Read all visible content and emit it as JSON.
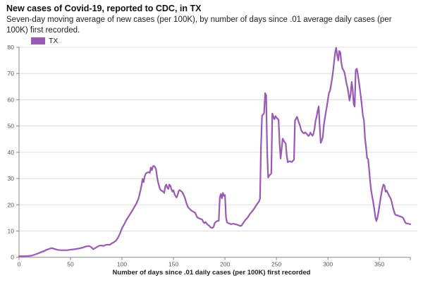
{
  "header": {
    "title": "New cases of Covid-19, reported to CDC, in TX",
    "subtitle": "Seven-day moving average of new cases (per 100K), by number of days since .01 average daily cases (per 100K) first recorded."
  },
  "colors": {
    "line": "#9b59b6",
    "grid": "#dddddd",
    "axis": "#888888",
    "tick_label": "#555555"
  },
  "chart_data": {
    "type": "line",
    "title": "New cases of Covid-19, reported to CDC, in TX",
    "xlabel": "Number of days since .01 daily cases (per 100K) first recorded",
    "ylabel": "",
    "xlim": [
      0,
      380
    ],
    "ylim": [
      0,
      80
    ],
    "x_ticks": [
      0,
      50,
      100,
      150,
      200,
      250,
      300,
      350
    ],
    "y_ticks": [
      0,
      10,
      20,
      30,
      40,
      50,
      60,
      70,
      80
    ],
    "grid": true,
    "legend_position": "top-left",
    "series": [
      {
        "name": "TX",
        "color": "#9b59b6",
        "points": [
          [
            0,
            0.4
          ],
          [
            4,
            0.4
          ],
          [
            8,
            0.45
          ],
          [
            12,
            0.6
          ],
          [
            15,
            1.0
          ],
          [
            18,
            1.4
          ],
          [
            21,
            1.9
          ],
          [
            24,
            2.3
          ],
          [
            27,
            2.9
          ],
          [
            30,
            3.3
          ],
          [
            32,
            3.5
          ],
          [
            34,
            3.2
          ],
          [
            36,
            3.0
          ],
          [
            38,
            2.8
          ],
          [
            41,
            2.7
          ],
          [
            44,
            2.7
          ],
          [
            47,
            2.7
          ],
          [
            50,
            2.9
          ],
          [
            53,
            3.0
          ],
          [
            56,
            3.2
          ],
          [
            59,
            3.4
          ],
          [
            62,
            3.7
          ],
          [
            64,
            4.0
          ],
          [
            66,
            4.2
          ],
          [
            68,
            4.3
          ],
          [
            70,
            3.9
          ],
          [
            72,
            3.1
          ],
          [
            74,
            3.5
          ],
          [
            76,
            4.0
          ],
          [
            78,
            4.4
          ],
          [
            80,
            4.5
          ],
          [
            82,
            4.3
          ],
          [
            84,
            4.7
          ],
          [
            86,
            4.8
          ],
          [
            88,
            4.7
          ],
          [
            90,
            5.3
          ],
          [
            92,
            5.7
          ],
          [
            94,
            6.3
          ],
          [
            96,
            7.4
          ],
          [
            98,
            9.0
          ],
          [
            100,
            11.1
          ],
          [
            102,
            12.5
          ],
          [
            104,
            14.0
          ],
          [
            106,
            15.3
          ],
          [
            108,
            16.5
          ],
          [
            110,
            17.8
          ],
          [
            112,
            19.2
          ],
          [
            114,
            20.5
          ],
          [
            116,
            22.3
          ],
          [
            118,
            25.5
          ],
          [
            119,
            27.5
          ],
          [
            120,
            29.9
          ],
          [
            121,
            28.6
          ],
          [
            122,
            30.8
          ],
          [
            123,
            31.8
          ],
          [
            124,
            32.2
          ],
          [
            126,
            32.4
          ],
          [
            127,
            32.2
          ],
          [
            128,
            34.2
          ],
          [
            129,
            33.2
          ],
          [
            130,
            34.6
          ],
          [
            131,
            34.8
          ],
          [
            132,
            34.4
          ],
          [
            133,
            33.5
          ],
          [
            134,
            30.8
          ],
          [
            135,
            28.6
          ],
          [
            136,
            27.2
          ],
          [
            137,
            25.9
          ],
          [
            138,
            25.5
          ],
          [
            139,
            25.2
          ],
          [
            140,
            25.0
          ],
          [
            141,
            24.5
          ],
          [
            142,
            27.0
          ],
          [
            143,
            27.7
          ],
          [
            144,
            26.5
          ],
          [
            145,
            26.0
          ],
          [
            146,
            27.7
          ],
          [
            147,
            27.2
          ],
          [
            148,
            25.9
          ],
          [
            149,
            25.0
          ],
          [
            150,
            25.5
          ],
          [
            151,
            24.1
          ],
          [
            152,
            23.3
          ],
          [
            153,
            22.8
          ],
          [
            154,
            23.7
          ],
          [
            155,
            25.2
          ],
          [
            156,
            25.6
          ],
          [
            157,
            25.3
          ],
          [
            158,
            25.0
          ],
          [
            159,
            24.5
          ],
          [
            160,
            23.6
          ],
          [
            161,
            22.8
          ],
          [
            162,
            21.4
          ],
          [
            163,
            20.1
          ],
          [
            164,
            19.2
          ],
          [
            166,
            18.3
          ],
          [
            168,
            17.6
          ],
          [
            170,
            17.2
          ],
          [
            171,
            17.0
          ],
          [
            172,
            16.1
          ],
          [
            173,
            15.2
          ],
          [
            175,
            14.8
          ],
          [
            177,
            14.5
          ],
          [
            178,
            14.3
          ],
          [
            179,
            13.4
          ],
          [
            180,
            13.0
          ],
          [
            181,
            13.4
          ],
          [
            182,
            13.0
          ],
          [
            183,
            12.5
          ],
          [
            185,
            11.9
          ],
          [
            186,
            11.4
          ],
          [
            187,
            11.2
          ],
          [
            188,
            11.2
          ],
          [
            189,
            11.6
          ],
          [
            190,
            13.0
          ],
          [
            191,
            13.4
          ],
          [
            192,
            13.7
          ],
          [
            193,
            13.9
          ],
          [
            194,
            13.9
          ],
          [
            195,
            22.8
          ],
          [
            196,
            24.1
          ],
          [
            197,
            22.4
          ],
          [
            198,
            24.5
          ],
          [
            199,
            23.4
          ],
          [
            200,
            23.7
          ],
          [
            201,
            15.1
          ],
          [
            202,
            13.3
          ],
          [
            204,
            12.9
          ],
          [
            206,
            12.6
          ],
          [
            208,
            12.8
          ],
          [
            210,
            12.6
          ],
          [
            212,
            12.4
          ],
          [
            214,
            12.1
          ],
          [
            215,
            11.9
          ],
          [
            216,
            12.1
          ],
          [
            218,
            13.2
          ],
          [
            220,
            14.3
          ],
          [
            222,
            15.1
          ],
          [
            224,
            16.4
          ],
          [
            226,
            17.3
          ],
          [
            228,
            18.3
          ],
          [
            230,
            19.6
          ],
          [
            232,
            20.7
          ],
          [
            233,
            21.2
          ],
          [
            234,
            22.3
          ],
          [
            235,
            42.0
          ],
          [
            236,
            54.0
          ],
          [
            237,
            54.3
          ],
          [
            238,
            55.0
          ],
          [
            239,
            62.5
          ],
          [
            240,
            61.8
          ],
          [
            241,
            40.0
          ],
          [
            242,
            30.4
          ],
          [
            243,
            31.2
          ],
          [
            244,
            31.5
          ],
          [
            245,
            31.9
          ],
          [
            246,
            54.8
          ],
          [
            247,
            53.5
          ],
          [
            248,
            52.6
          ],
          [
            249,
            53.8
          ],
          [
            250,
            53.2
          ],
          [
            251,
            52.8
          ],
          [
            252,
            52.4
          ],
          [
            253,
            44.0
          ],
          [
            254,
            37.6
          ],
          [
            255,
            41.0
          ],
          [
            256,
            45.2
          ],
          [
            257,
            44.4
          ],
          [
            258,
            43.8
          ],
          [
            259,
            43.3
          ],
          [
            260,
            39.0
          ],
          [
            261,
            36.2
          ],
          [
            262,
            36.5
          ],
          [
            263,
            36.6
          ],
          [
            264,
            36.4
          ],
          [
            265,
            36.3
          ],
          [
            266,
            36.8
          ],
          [
            267,
            37.2
          ],
          [
            268,
            52.0
          ],
          [
            269,
            52.8
          ],
          [
            270,
            53.5
          ],
          [
            271,
            52.3
          ],
          [
            272,
            51.0
          ],
          [
            273,
            50.0
          ],
          [
            274,
            48.4
          ],
          [
            275,
            47.8
          ],
          [
            276,
            47.4
          ],
          [
            277,
            47.2
          ],
          [
            278,
            47.6
          ],
          [
            279,
            47.2
          ],
          [
            280,
            46.8
          ],
          [
            281,
            46.2
          ],
          [
            282,
            46.6
          ],
          [
            283,
            47.5
          ],
          [
            284,
            46.8
          ],
          [
            285,
            46.3
          ],
          [
            286,
            47.2
          ],
          [
            287,
            49.0
          ],
          [
            288,
            52.0
          ],
          [
            289,
            53.6
          ],
          [
            290,
            55.8
          ],
          [
            291,
            57.5
          ],
          [
            292,
            50.0
          ],
          [
            293,
            43.6
          ],
          [
            294,
            44.5
          ],
          [
            295,
            45.8
          ],
          [
            296,
            50.2
          ],
          [
            297,
            53.0
          ],
          [
            298,
            55.2
          ],
          [
            299,
            57.6
          ],
          [
            300,
            60.2
          ],
          [
            301,
            62.6
          ],
          [
            302,
            63.4
          ],
          [
            303,
            65.5
          ],
          [
            304,
            68.0
          ],
          [
            305,
            71.0
          ],
          [
            306,
            74.5
          ],
          [
            307,
            78.0
          ],
          [
            308,
            79.8
          ],
          [
            309,
            77.0
          ],
          [
            310,
            75.0
          ],
          [
            311,
            78.6
          ],
          [
            312,
            78.0
          ],
          [
            313,
            74.3
          ],
          [
            314,
            72.0
          ],
          [
            315,
            71.3
          ],
          [
            316,
            70.5
          ],
          [
            317,
            68.5
          ],
          [
            318,
            66.3
          ],
          [
            319,
            64.8
          ],
          [
            320,
            62.3
          ],
          [
            321,
            59.7
          ],
          [
            322,
            62.0
          ],
          [
            323,
            66.8
          ],
          [
            324,
            64.0
          ],
          [
            325,
            58.3
          ],
          [
            326,
            57.4
          ],
          [
            327,
            71.4
          ],
          [
            328,
            71.8
          ],
          [
            329,
            70.0
          ],
          [
            330,
            67.0
          ],
          [
            331,
            64.2
          ],
          [
            332,
            61.0
          ],
          [
            333,
            57.4
          ],
          [
            334,
            54.0
          ],
          [
            335,
            52.0
          ],
          [
            336,
            45.6
          ],
          [
            337,
            42.0
          ],
          [
            338,
            37.8
          ],
          [
            339,
            37.4
          ],
          [
            340,
            33.5
          ],
          [
            341,
            29.0
          ],
          [
            342,
            25.4
          ],
          [
            343,
            23.0
          ],
          [
            344,
            21.0
          ],
          [
            345,
            18.3
          ],
          [
            346,
            15.5
          ],
          [
            347,
            13.8
          ],
          [
            348,
            15.0
          ],
          [
            349,
            17.0
          ],
          [
            350,
            19.5
          ],
          [
            351,
            22.0
          ],
          [
            352,
            24.5
          ],
          [
            353,
            26.5
          ],
          [
            354,
            27.7
          ],
          [
            355,
            27.2
          ],
          [
            356,
            25.0
          ],
          [
            357,
            25.4
          ],
          [
            358,
            24.6
          ],
          [
            359,
            23.8
          ],
          [
            360,
            23.0
          ],
          [
            361,
            22.3
          ],
          [
            362,
            21.0
          ],
          [
            363,
            19.2
          ],
          [
            364,
            17.8
          ],
          [
            365,
            16.5
          ],
          [
            366,
            16.1
          ],
          [
            367,
            16.0
          ],
          [
            368,
            15.9
          ],
          [
            369,
            15.7
          ],
          [
            370,
            15.6
          ],
          [
            371,
            15.4
          ],
          [
            372,
            15.3
          ],
          [
            373,
            15.0
          ],
          [
            374,
            14.2
          ],
          [
            375,
            13.3
          ],
          [
            376,
            12.9
          ],
          [
            377,
            12.9
          ],
          [
            378,
            12.8
          ],
          [
            379,
            12.7
          ],
          [
            380,
            12.6
          ]
        ]
      }
    ]
  }
}
